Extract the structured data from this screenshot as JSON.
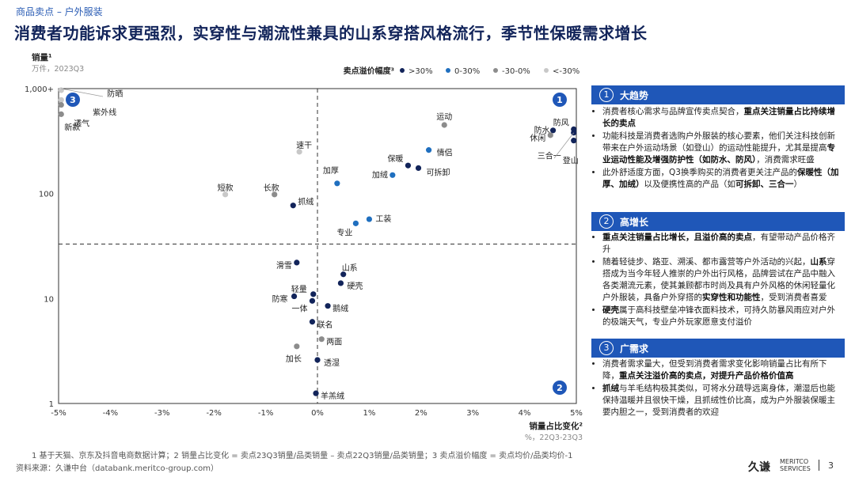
{
  "header": {
    "breadcrumb": "商品卖点 – 户外服装",
    "title": "消费者功能诉求更强烈，实穿性与潮流性兼具的山系穿搭风格流行，季节性保暖需求增长"
  },
  "chart_data": {
    "type": "scatter",
    "ylabel": "销量¹",
    "yunit": "万件，2023Q3",
    "xlabel": "销量占比变化²",
    "xunit": "%，22Q3-23Q3",
    "xlim": [
      -5,
      5
    ],
    "ylim": [
      1,
      1000
    ],
    "yscale": "log",
    "xticks": [
      "-5%",
      "-4%",
      "-3%",
      "-2%",
      "-1%",
      "0%",
      "1%",
      "2%",
      "3%",
      "4%",
      "5%"
    ],
    "yticks": [
      {
        "v": 1,
        "label": "1"
      },
      {
        "v": 10,
        "label": "10"
      },
      {
        "v": 100,
        "label": "100"
      },
      {
        "v": 1000,
        "label": "1,000+"
      }
    ],
    "divider": {
      "x": 0,
      "y": 33
    },
    "legend": {
      "title": "卖点溢价幅度³",
      "items": [
        {
          "label": ">30%",
          "color": "#12245a"
        },
        {
          "label": "0-30%",
          "color": "#1f6fbf"
        },
        {
          "label": "-30-0%",
          "color": "#8c8c8c"
        },
        {
          "label": "<-30%",
          "color": "#c8c8c8"
        }
      ]
    },
    "quadrant_labels": [
      "1",
      "2",
      "3"
    ],
    "points": [
      {
        "label": "防晒",
        "x": -4.95,
        "y": 1000,
        "cat": 3
      },
      {
        "label": "紫外线",
        "x": -4.95,
        "y": 780,
        "cat": 3
      },
      {
        "label": "透气",
        "x": -4.95,
        "y": 700,
        "cat": 2
      },
      {
        "label": "新款",
        "x": -4.95,
        "y": 570,
        "cat": 2
      },
      {
        "label": "运动",
        "x": 2.45,
        "y": 450,
        "cat": 2
      },
      {
        "label": "防风",
        "x": 4.95,
        "y": 410,
        "cat": 0
      },
      {
        "label": "防水",
        "x": 4.55,
        "y": 400,
        "cat": 0
      },
      {
        "label": "休闲",
        "x": 4.5,
        "y": 360,
        "cat": 2
      },
      {
        "label": "三合一",
        "x": 4.95,
        "y": 380,
        "cat": 0
      },
      {
        "label": "登山",
        "x": 4.95,
        "y": 320,
        "cat": 0
      },
      {
        "label": "速干",
        "x": -0.35,
        "y": 250,
        "cat": 3
      },
      {
        "label": "情侣",
        "x": 2.15,
        "y": 260,
        "cat": 1
      },
      {
        "label": "保暖",
        "x": 1.75,
        "y": 185,
        "cat": 0
      },
      {
        "label": "可拆卸",
        "x": 1.95,
        "y": 175,
        "cat": 0
      },
      {
        "label": "加绒",
        "x": 1.45,
        "y": 150,
        "cat": 1
      },
      {
        "label": "加厚",
        "x": 0.38,
        "y": 125,
        "cat": 1
      },
      {
        "label": "短款",
        "x": -1.78,
        "y": 98,
        "cat": 3
      },
      {
        "label": "长款",
        "x": -0.83,
        "y": 98,
        "cat": 2
      },
      {
        "label": "抓绒",
        "x": -0.47,
        "y": 77,
        "cat": 0
      },
      {
        "label": "工装",
        "x": 1.0,
        "y": 57,
        "cat": 1
      },
      {
        "label": "专业",
        "x": 0.74,
        "y": 52,
        "cat": 1
      },
      {
        "label": "滑雪",
        "x": -0.4,
        "y": 22,
        "cat": 0
      },
      {
        "label": "山系",
        "x": 0.5,
        "y": 17,
        "cat": 0
      },
      {
        "label": "硬壳",
        "x": 0.45,
        "y": 14,
        "cat": 0
      },
      {
        "label": "轻量",
        "x": -0.08,
        "y": 11,
        "cat": 0
      },
      {
        "label": "防寒",
        "x": -0.45,
        "y": 10.5,
        "cat": 0
      },
      {
        "label": "一体",
        "x": -0.1,
        "y": 9.5,
        "cat": 0
      },
      {
        "label": "鹅绒",
        "x": 0.2,
        "y": 8.5,
        "cat": 0
      },
      {
        "label": "联名",
        "x": -0.1,
        "y": 6,
        "cat": 0
      },
      {
        "label": "两面",
        "x": 0.08,
        "y": 4.1,
        "cat": 2
      },
      {
        "label": "加长",
        "x": -0.4,
        "y": 3.5,
        "cat": 2
      },
      {
        "label": "透湿",
        "x": 0.0,
        "y": 2.6,
        "cat": 0
      },
      {
        "label": "羊羔绒",
        "x": -0.03,
        "y": 1.25,
        "cat": 0
      }
    ]
  },
  "panel": {
    "sections": [
      {
        "num": "1",
        "title": "大趋势",
        "bullets": [
          "消费者核心需求与品牌宣传卖点契合，<b>重点关注销量占比持续增长的卖点</b>",
          "功能科技是消费者选购户外服装的核心要素，他们关注科技创新带来在户外运动场景（如登山）的运动性能提升，尤其是提高<b>专业运动性能及增强防护性（如防水、防风）</b>，消费需求旺盛",
          "此外舒适度方面，Q3换季购买的消费者更关注产品的<b>保暖性（加厚、加绒）</b>以及便携性高的产品（如<b>可拆卸、三合一</b>）"
        ]
      },
      {
        "num": "2",
        "title": "高增长",
        "bullets": [
          "<b>重点关注销量占比增长，且溢价高的卖点</b>，有望带动产品价格齐升",
          "随着轻徒步、路亚、溯溪、都市露营等户外活动的兴起，<b>山系</b>穿搭成为当今年轻人推崇的户外出行风格，品牌尝试在产品中融入各类潮流元素，使其兼顾都市时尚及具有户外风格的休闲轻量化户外服装，具备户外穿搭的<b>实穿性和功能性</b>，受到消费者喜爱",
          "<b>硬壳</b>属于高科技壁垒冲锋衣面料技术，可持久防暴风雨应对户外的极端天气，专业户外玩家愿意支付溢价"
        ]
      },
      {
        "num": "3",
        "title": "广需求",
        "bullets": [
          "消费者需求量大，但受到消费者需求变化影响销量占比有所下降，<b>重点关注溢价高的卖点，对提升产品价格价值高</b>",
          "<b>抓绒</b>与羊毛结构极其类似，可将水分疏导远离身体，潮湿后也能保持温暖并且很快干燥，且抓绒性价比高，成为户外服装保暖主要内胆之一，受到消费者的欢迎"
        ]
      }
    ]
  },
  "footer": {
    "notes": "1  基于天猫、京东及抖音电商数据计算；2  销量占比变化 = 卖点23Q3销量/品类销量 – 卖点22Q3销量/品类销量；3  卖点溢价幅度 = 卖点均价/品类均价-1",
    "source": "资料来源：久谦中台（databank.meritco-group.com）",
    "logo_cn": "久谦",
    "logo_en1": "MERITCO",
    "logo_en2": "SERVICES",
    "page": "3"
  }
}
